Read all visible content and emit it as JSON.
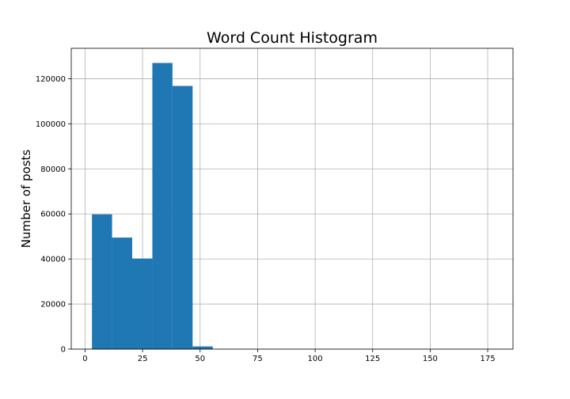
{
  "chart_data": {
    "type": "bar",
    "title": "Word Count Histogram",
    "xlabel": "",
    "ylabel": "Number of posts",
    "xlim": [
      -6,
      186
    ],
    "ylim": [
      0,
      133500
    ],
    "grid": true,
    "bar_color": "#1f77b4",
    "bins": [
      {
        "x0": 3,
        "x1": 11.75,
        "value": 59800
      },
      {
        "x0": 11.75,
        "x1": 20.5,
        "value": 49500
      },
      {
        "x0": 20.5,
        "x1": 29.25,
        "value": 40200
      },
      {
        "x0": 29.25,
        "x1": 38,
        "value": 127000
      },
      {
        "x0": 38,
        "x1": 46.75,
        "value": 116800
      },
      {
        "x0": 46.75,
        "x1": 55.5,
        "value": 1200
      }
    ],
    "x_ticks": [
      {
        "value": 0,
        "label": "0"
      },
      {
        "value": 25,
        "label": "25"
      },
      {
        "value": 50,
        "label": "50"
      },
      {
        "value": 75,
        "label": "75"
      },
      {
        "value": 100,
        "label": "100"
      },
      {
        "value": 125,
        "label": "125"
      },
      {
        "value": 150,
        "label": "150"
      },
      {
        "value": 175,
        "label": "175"
      }
    ],
    "y_ticks": [
      {
        "value": 0,
        "label": "0"
      },
      {
        "value": 20000,
        "label": "20000"
      },
      {
        "value": 40000,
        "label": "40000"
      },
      {
        "value": 60000,
        "label": "60000"
      },
      {
        "value": 80000,
        "label": "80000"
      },
      {
        "value": 100000,
        "label": "100000"
      },
      {
        "value": 120000,
        "label": "120000"
      }
    ]
  }
}
